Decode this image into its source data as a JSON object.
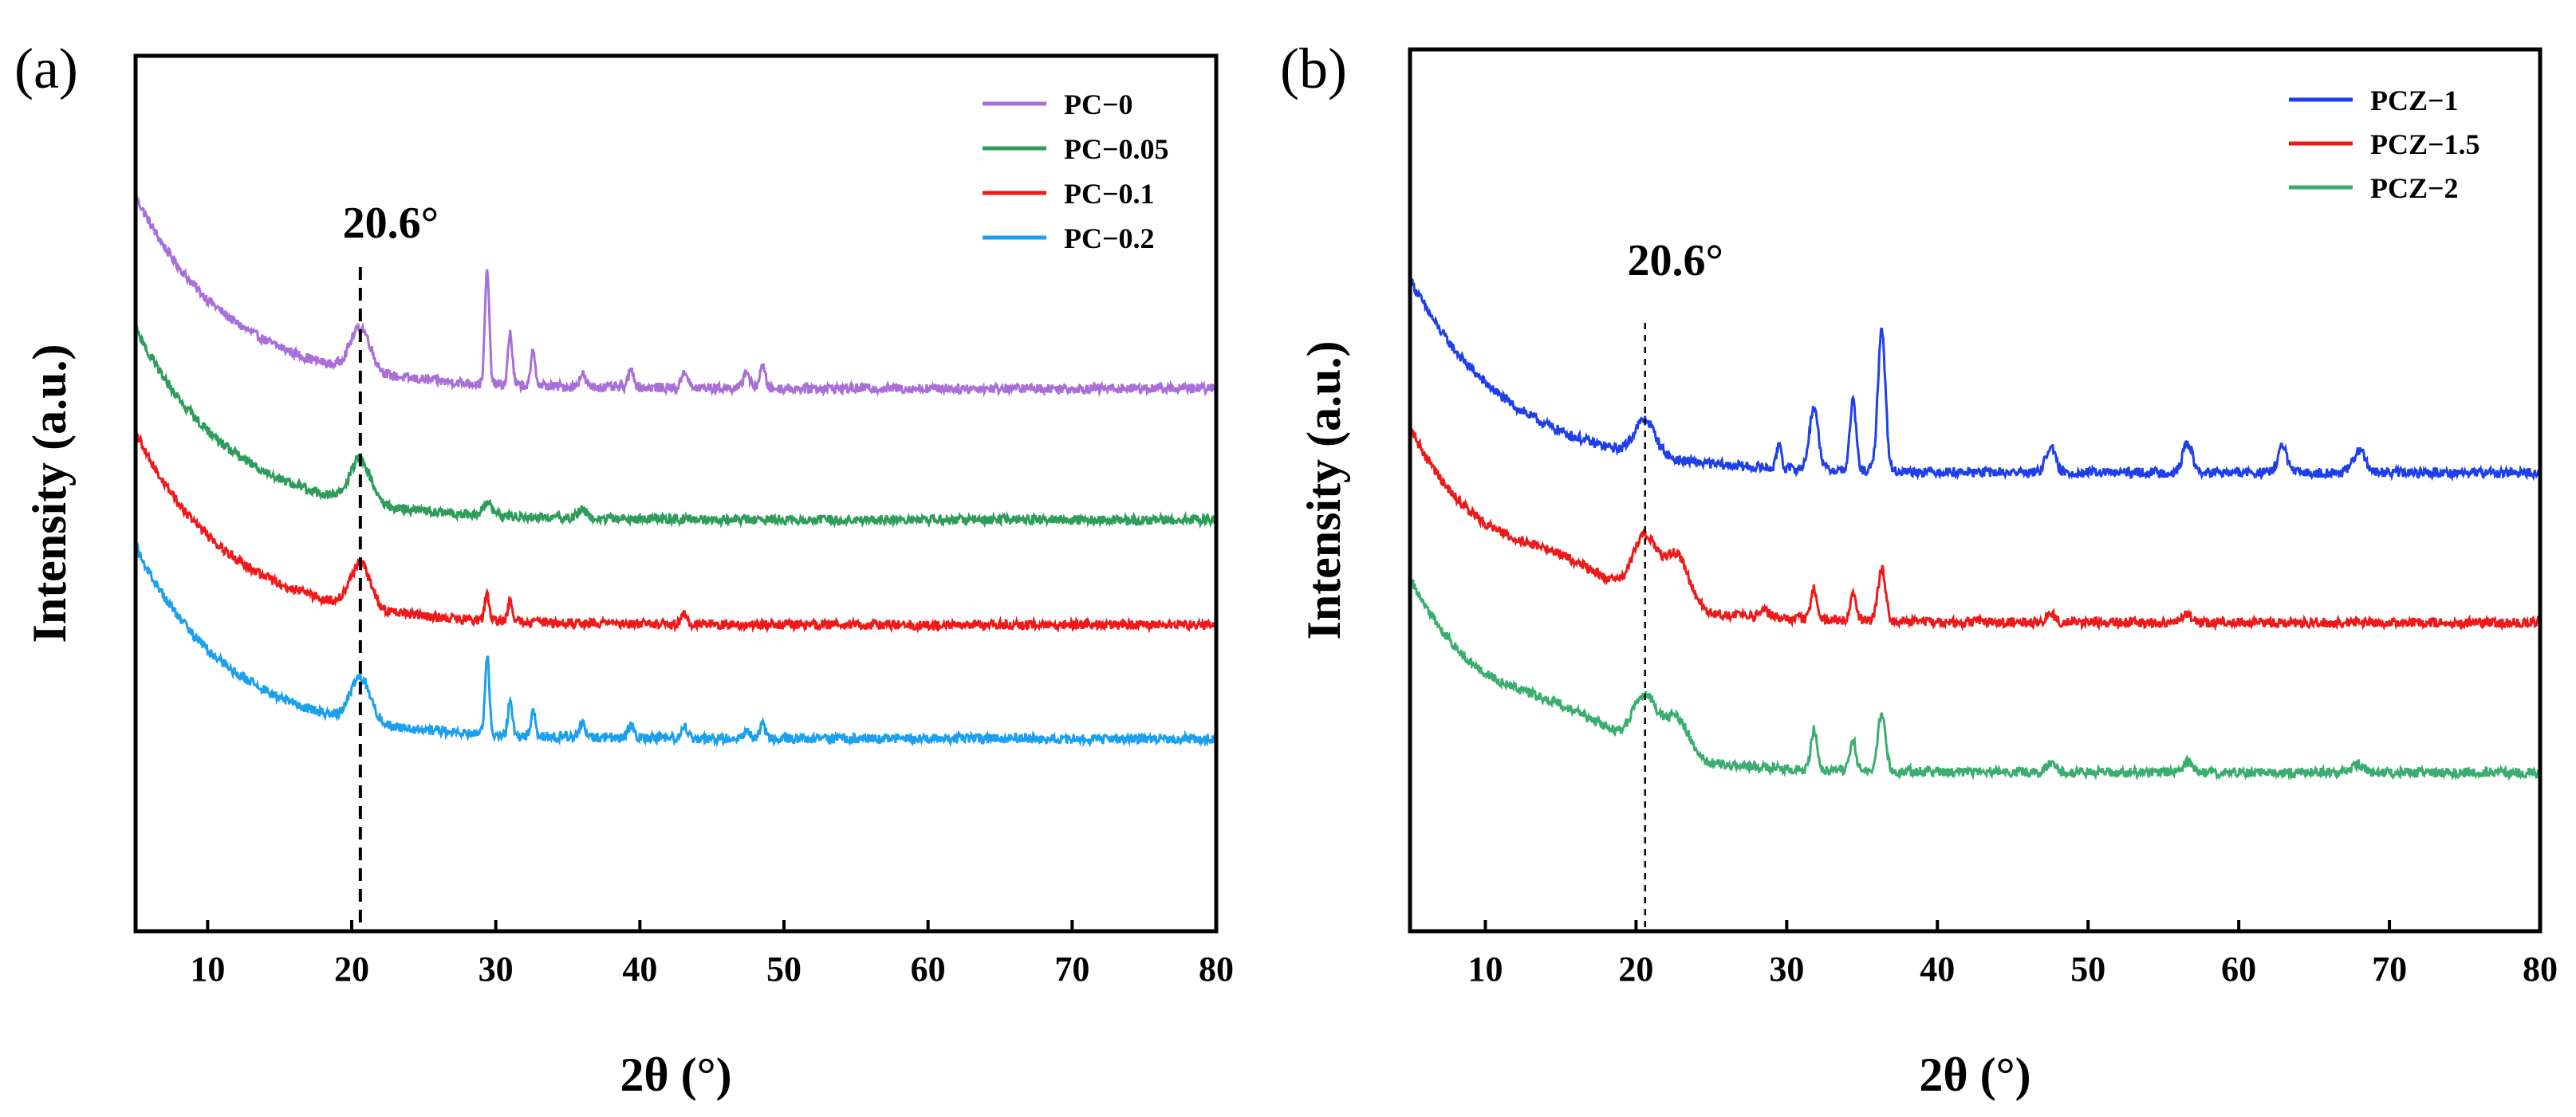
{
  "chart_data": [
    {
      "type": "line",
      "panel_label": "(a)",
      "title": "",
      "xlabel": "2θ (°)",
      "ylabel": "Intensity (a.u.)",
      "xlim": [
        5,
        80
      ],
      "ylim": [
        0,
        100
      ],
      "xticks": [
        10,
        20,
        30,
        40,
        50,
        60,
        70,
        80
      ],
      "legend_position": "top-right",
      "annotation": {
        "text": "20.6°",
        "x": 20.6
      },
      "series": [
        {
          "name": "PC−0",
          "color": "#A86FD8",
          "offset": 62,
          "peaks": [
            [
              20.6,
              5,
              0.7
            ],
            [
              29.4,
              13,
              0.15
            ],
            [
              31.0,
              6,
              0.15
            ],
            [
              32.6,
              4,
              0.15
            ],
            [
              36.0,
              1.5,
              0.2
            ],
            [
              39.4,
              2,
              0.2
            ],
            [
              43.1,
              2,
              0.2
            ],
            [
              47.4,
              2,
              0.2
            ],
            [
              48.5,
              2.5,
              0.2
            ]
          ]
        },
        {
          "name": "PC−0.05",
          "color": "#2E9D5B",
          "offset": 47,
          "peaks": [
            [
              20.6,
              5,
              0.7
            ],
            [
              29.4,
              1.5,
              0.3
            ],
            [
              36.0,
              1,
              0.3
            ]
          ]
        },
        {
          "name": "PC−0.1",
          "color": "#F01818",
          "offset": 35,
          "peaks": [
            [
              20.6,
              5,
              0.7
            ],
            [
              29.4,
              3,
              0.15
            ],
            [
              31.0,
              2.5,
              0.15
            ],
            [
              43.1,
              1,
              0.2
            ]
          ]
        },
        {
          "name": "PC−0.2",
          "color": "#1AA0EC",
          "offset": 22,
          "peaks": [
            [
              20.6,
              5,
              0.7
            ],
            [
              29.4,
              9,
              0.15
            ],
            [
              31.0,
              4,
              0.15
            ],
            [
              32.6,
              3,
              0.15
            ],
            [
              36.0,
              1.5,
              0.2
            ],
            [
              39.4,
              1.5,
              0.2
            ],
            [
              43.1,
              1.5,
              0.2
            ],
            [
              47.4,
              1,
              0.2
            ],
            [
              48.5,
              1.5,
              0.2
            ]
          ]
        }
      ]
    },
    {
      "type": "line",
      "panel_label": "(b)",
      "title": "",
      "xlabel": "2θ (°)",
      "ylabel": "Intensity (a.u.)",
      "xlim": [
        5,
        80
      ],
      "ylim": [
        0,
        100
      ],
      "xticks": [
        10,
        20,
        30,
        40,
        50,
        60,
        70,
        80
      ],
      "legend_position": "top-right",
      "annotation": {
        "text": "20.6°",
        "x": 20.6
      },
      "series": [
        {
          "name": "PCZ−1",
          "color": "#1E3FEA",
          "offset": 52,
          "peaks": [
            [
              20.6,
              4,
              0.7
            ],
            [
              29.5,
              3,
              0.15
            ],
            [
              31.8,
              7,
              0.3
            ],
            [
              34.4,
              8,
              0.2
            ],
            [
              36.3,
              16,
              0.25
            ],
            [
              47.5,
              3,
              0.3
            ],
            [
              56.6,
              3.5,
              0.3
            ],
            [
              62.9,
              3,
              0.3
            ],
            [
              68.0,
              2.5,
              0.4
            ]
          ]
        },
        {
          "name": "PCZ−1.5",
          "color": "#EE1A1A",
          "offset": 35,
          "peaks": [
            [
              15.0,
              3,
              3.5
            ],
            [
              20.6,
              7,
              0.8
            ],
            [
              22.7,
              6,
              0.8
            ],
            [
              28.5,
              1,
              0.3
            ],
            [
              31.8,
              3.5,
              0.2
            ],
            [
              34.4,
              3,
              0.2
            ],
            [
              36.3,
              6,
              0.25
            ],
            [
              47.5,
              1,
              0.3
            ],
            [
              56.6,
              1,
              0.3
            ]
          ]
        },
        {
          "name": "PCZ−2",
          "color": "#3AAE6E",
          "offset": 18,
          "peaks": [
            [
              15.0,
              3,
              3.5
            ],
            [
              20.6,
              6,
              0.8
            ],
            [
              22.7,
              4.5,
              0.8
            ],
            [
              31.8,
              4.5,
              0.2
            ],
            [
              34.4,
              3.5,
              0.2
            ],
            [
              36.3,
              6.5,
              0.25
            ],
            [
              47.5,
              1,
              0.3
            ],
            [
              56.6,
              1.2,
              0.3
            ],
            [
              67.9,
              1,
              0.3
            ]
          ]
        }
      ]
    }
  ]
}
